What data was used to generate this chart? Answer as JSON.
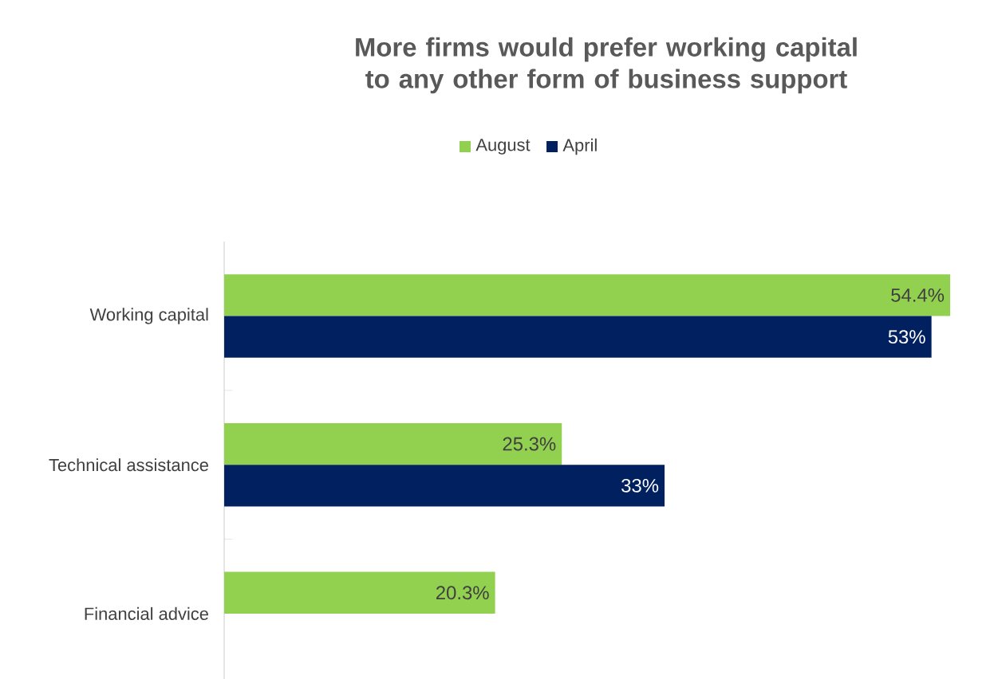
{
  "chart_data": {
    "type": "bar",
    "orientation": "horizontal",
    "relative": false,
    "title": "More firms would prefer working capital to any other form of business support",
    "categories": [
      "Working capital",
      "Technical assistance",
      "Financial advice"
    ],
    "series": [
      {
        "name": "August",
        "color": "#92d050",
        "values": [
          54.4,
          25.3,
          20.3
        ],
        "value_labels": [
          "54.4%",
          "25.3%",
          "20.3%"
        ]
      },
      {
        "name": "April",
        "color": "#002060",
        "values": [
          53,
          33,
          null
        ],
        "value_labels": [
          "53%",
          "33%",
          null
        ]
      }
    ],
    "legend": "top"
  }
}
